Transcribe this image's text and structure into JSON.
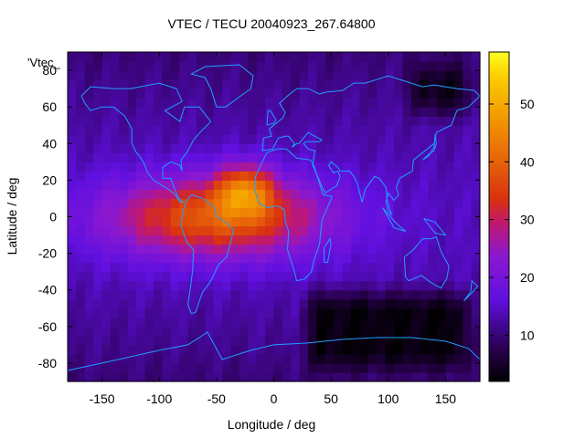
{
  "chart_data": {
    "type": "heatmap",
    "title": "VTEC / TECU 20040923_267.64800",
    "xlabel": "Longitude / deg",
    "ylabel": "Latitude / deg",
    "xlim": [
      -180,
      180
    ],
    "ylim": [
      -90,
      90
    ],
    "x_ticks": [
      -150,
      -100,
      -50,
      0,
      50,
      100,
      150
    ],
    "y_ticks": [
      -80,
      -60,
      -40,
      -20,
      0,
      20,
      40,
      60,
      80
    ],
    "colorbar": {
      "range": [
        2,
        59
      ],
      "ticks": [
        10,
        20,
        30,
        40,
        50
      ],
      "palette": "black-purple-red-orange-yellow"
    },
    "key_label": "'Vtec_",
    "grid": false,
    "field_description": {
      "peak_value_tecu": 58,
      "peak_location": {
        "lon": -25,
        "lat": 15
      },
      "background_value_tecu": 10,
      "crest_bands": [
        {
          "lon_min": -160,
          "lon_max": 60,
          "lat_min": -25,
          "lat_max": 25,
          "value_tecu": 35
        }
      ],
      "low_regions": [
        {
          "lon_min": 20,
          "lon_max": 180,
          "lat_min": -90,
          "lat_max": -35,
          "value_tecu": 3
        },
        {
          "lon_min": 110,
          "lon_max": 180,
          "lat_min": 50,
          "lat_max": 90,
          "value_tecu": 4
        }
      ]
    },
    "overlay": "coastlines"
  }
}
